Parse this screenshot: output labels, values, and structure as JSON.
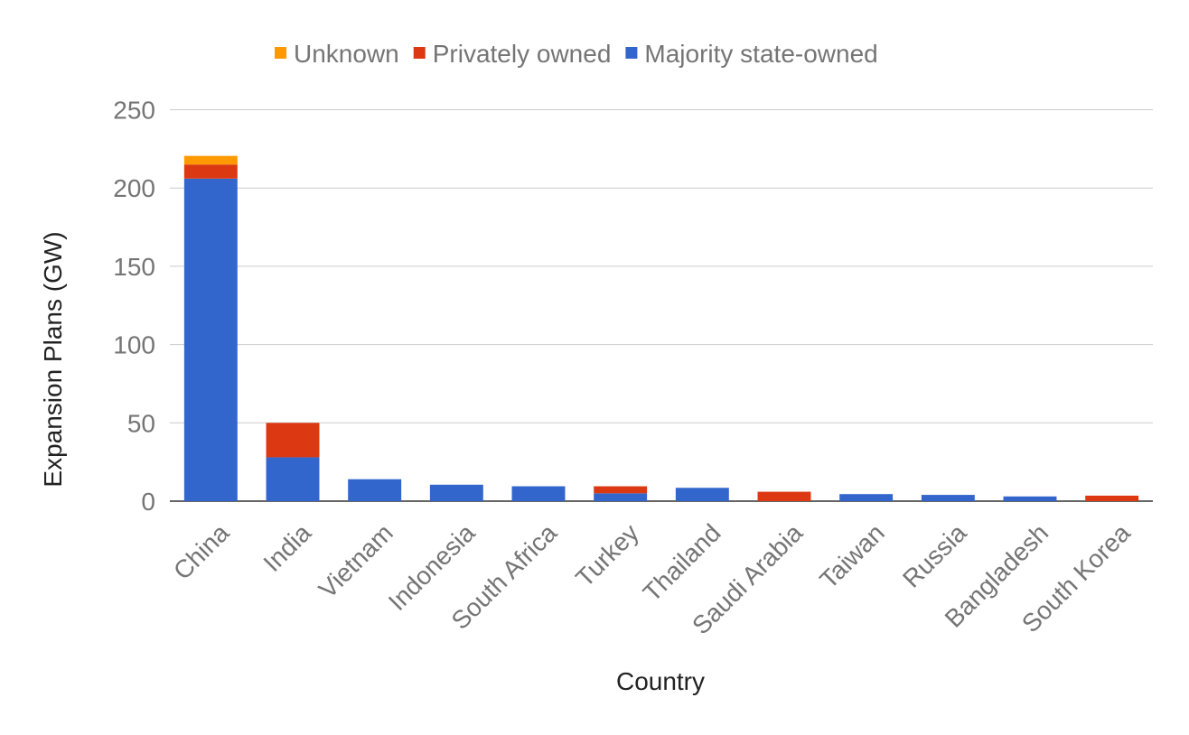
{
  "chart_data": {
    "type": "bar",
    "stacked": true,
    "xlabel": "Country",
    "ylabel": "Expansion Plans (GW)",
    "ylim": [
      0,
      250
    ],
    "yticks": [
      0,
      50,
      100,
      150,
      200,
      250
    ],
    "grid": true,
    "legend_position": "top",
    "categories": [
      "China",
      "India",
      "Vietnam",
      "Indonesia",
      "South Africa",
      "Turkey",
      "Thailand",
      "Saudi Arabia",
      "Taiwan",
      "Russia",
      "Bangladesh",
      "South Korea"
    ],
    "series": [
      {
        "name": "Majority state-owned",
        "color": "#3366cc",
        "values": [
          206,
          28,
          14,
          10.5,
          9.5,
          5,
          8.5,
          0,
          4.5,
          4,
          3,
          0
        ]
      },
      {
        "name": "Privately owned",
        "color": "#dc3912",
        "values": [
          9,
          22,
          0,
          0,
          0,
          4.5,
          0,
          6,
          0,
          0,
          0,
          3.5
        ]
      },
      {
        "name": "Unknown",
        "color": "#ff9900",
        "values": [
          5.5,
          0,
          0,
          0,
          0,
          0,
          0,
          0,
          0,
          0,
          0,
          0
        ]
      }
    ],
    "legend_order": [
      "Unknown",
      "Privately owned",
      "Majority state-owned"
    ]
  }
}
